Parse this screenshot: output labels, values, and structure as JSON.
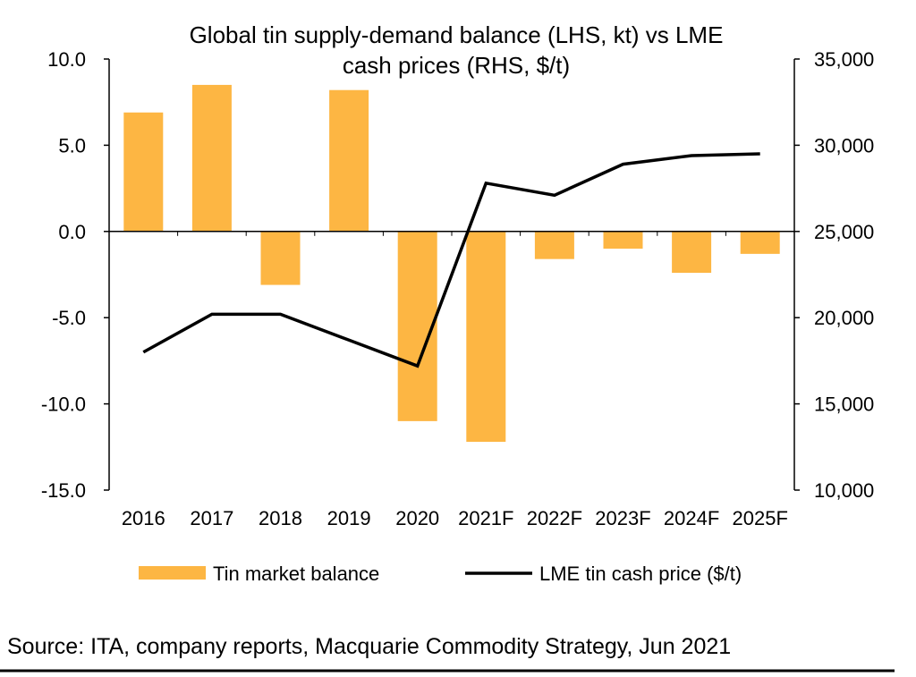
{
  "chart_data": {
    "type": "bar+line",
    "title_lines": [
      "Global tin supply-demand balance (LHS, kt) vs LME",
      "cash prices (RHS, $/t)"
    ],
    "categories": [
      "2016",
      "2017",
      "2018",
      "2019",
      "2020",
      "2021F",
      "2022F",
      "2023F",
      "2024F",
      "2025F"
    ],
    "left_axis": {
      "ylim": [
        -15,
        10
      ],
      "ticks": [
        "10.0",
        "5.0",
        "0.0",
        "-5.0",
        "-10.0",
        "-15.0"
      ],
      "tick_values": [
        10,
        5,
        0,
        -5,
        -10,
        -15
      ]
    },
    "right_axis": {
      "ylim": [
        10000,
        35000
      ],
      "ticks": [
        "35,000",
        "30,000",
        "25,000",
        "20,000",
        "15,000",
        "10,000"
      ],
      "tick_values": [
        35000,
        30000,
        25000,
        20000,
        15000,
        10000
      ]
    },
    "series": [
      {
        "name": "Tin market balance",
        "type": "bar",
        "axis": "left",
        "color": "#FDB643",
        "values": [
          6.9,
          8.5,
          -3.1,
          8.2,
          -11.0,
          -12.2,
          -1.6,
          -1.0,
          -2.4,
          -1.3
        ]
      },
      {
        "name": "LME tin cash price ($/t)",
        "type": "line",
        "axis": "right",
        "color": "#000000",
        "values": [
          18000,
          20200,
          20200,
          18700,
          17200,
          27800,
          27100,
          28900,
          29400,
          29500
        ]
      }
    ],
    "grid": false,
    "legend": "bottom"
  },
  "source": "Source: ITA, company reports, Macquarie Commodity Strategy, Jun 2021"
}
